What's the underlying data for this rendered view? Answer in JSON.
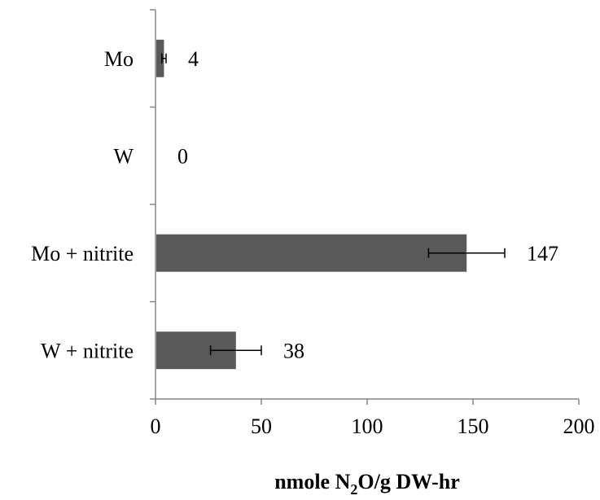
{
  "chart_data": {
    "type": "bar",
    "orientation": "horizontal",
    "categories": [
      "Mo",
      "W",
      "Mo + nitrite",
      "W + nitrite"
    ],
    "values": [
      4,
      0,
      147,
      38
    ],
    "value_labels": [
      "4",
      "0",
      "147",
      "38"
    ],
    "errors": [
      1,
      0,
      18,
      12
    ],
    "xlim": [
      0,
      200
    ],
    "x_ticks": [
      0,
      50,
      100,
      150,
      200
    ],
    "xlabel": {
      "main": "nmole N",
      "subscript": "2",
      "rest": "O/g DW-hr"
    },
    "grid": false,
    "colors": {
      "bar": "#595959",
      "axis": "#868686",
      "error_bar": "#000000"
    }
  }
}
